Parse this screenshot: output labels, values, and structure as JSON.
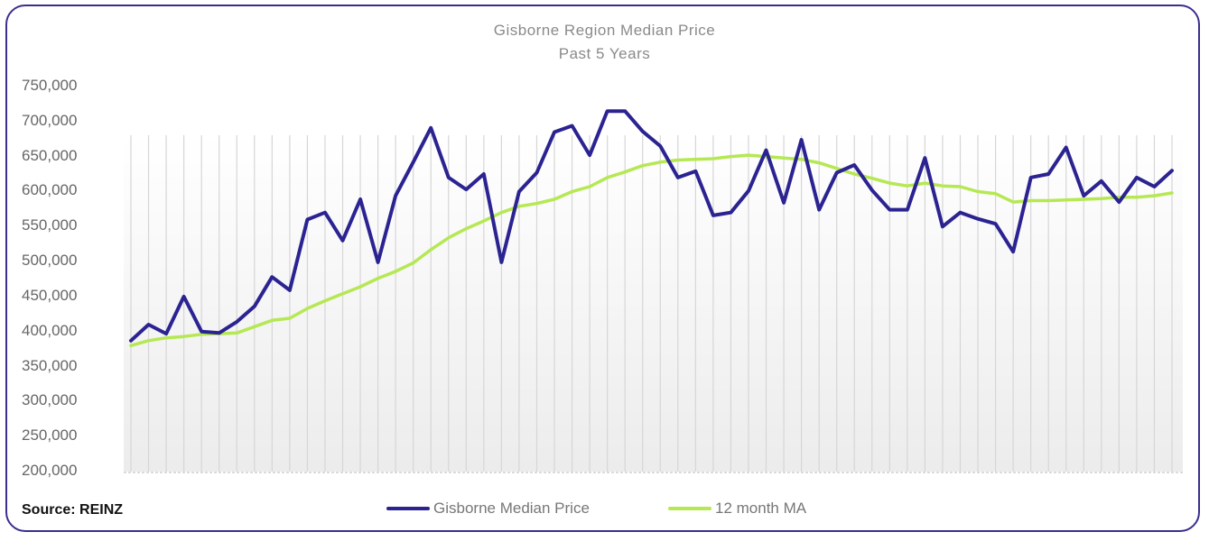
{
  "chart_data": {
    "type": "line",
    "title": "Gisborne Region Median Price",
    "subtitle": "Past 5 Years",
    "xlabel": "",
    "ylabel": "",
    "ylim": [
      200000,
      750000
    ],
    "yticks": [
      "750,000",
      "700,000",
      "650,000",
      "600,000",
      "550,000",
      "500,000",
      "450,000",
      "400,000",
      "350,000",
      "300,000",
      "250,000",
      "200,000"
    ],
    "x": [
      1,
      2,
      3,
      4,
      5,
      6,
      7,
      8,
      9,
      10,
      11,
      12,
      13,
      14,
      15,
      16,
      17,
      18,
      19,
      20,
      21,
      22,
      23,
      24,
      25,
      26,
      27,
      28,
      29,
      30,
      31,
      32,
      33,
      34,
      35,
      36,
      37,
      38,
      39,
      40,
      41,
      42,
      43,
      44,
      45,
      46,
      47,
      48,
      49,
      50,
      51,
      52,
      53,
      54,
      55,
      56,
      57,
      58,
      59,
      60
    ],
    "series": [
      {
        "name": "Gisborne Median Price",
        "color": "#2b2391",
        "values": [
          387000,
          410000,
          397000,
          450000,
          400000,
          398000,
          414000,
          436000,
          478000,
          459000,
          560000,
          570000,
          530000,
          589000,
          499000,
          594000,
          642000,
          691000,
          620000,
          603000,
          625000,
          499000,
          600000,
          627000,
          685000,
          694000,
          652000,
          715000,
          715000,
          686000,
          665000,
          620000,
          629000,
          566000,
          570000,
          601000,
          659000,
          584000,
          674000,
          574000,
          627000,
          638000,
          602000,
          574000,
          574000,
          648000,
          550000,
          570000,
          561000,
          554000,
          514000,
          620000,
          625000,
          663000,
          594000,
          615000,
          585000,
          620000,
          607000,
          630000
        ]
      },
      {
        "name": "12 month MA",
        "color": "#b5e853",
        "values": [
          380000,
          387000,
          391000,
          393000,
          396000,
          397000,
          398000,
          407000,
          416000,
          419000,
          433000,
          444000,
          454000,
          464000,
          476000,
          486000,
          498000,
          517000,
          534000,
          547000,
          558000,
          570000,
          579000,
          583000,
          589000,
          600000,
          607000,
          620000,
          628000,
          637000,
          642000,
          645000,
          646000,
          647000,
          650000,
          652000,
          650000,
          648000,
          646000,
          641000,
          633000,
          625000,
          619000,
          612000,
          608000,
          612000,
          608000,
          607000,
          600000,
          597000,
          585000,
          587000,
          587000,
          588000,
          589000,
          590000,
          592000,
          592000,
          594000,
          598000
        ]
      }
    ],
    "legend": "bottom-center",
    "grid": "vertical"
  },
  "source": "Source: REINZ"
}
